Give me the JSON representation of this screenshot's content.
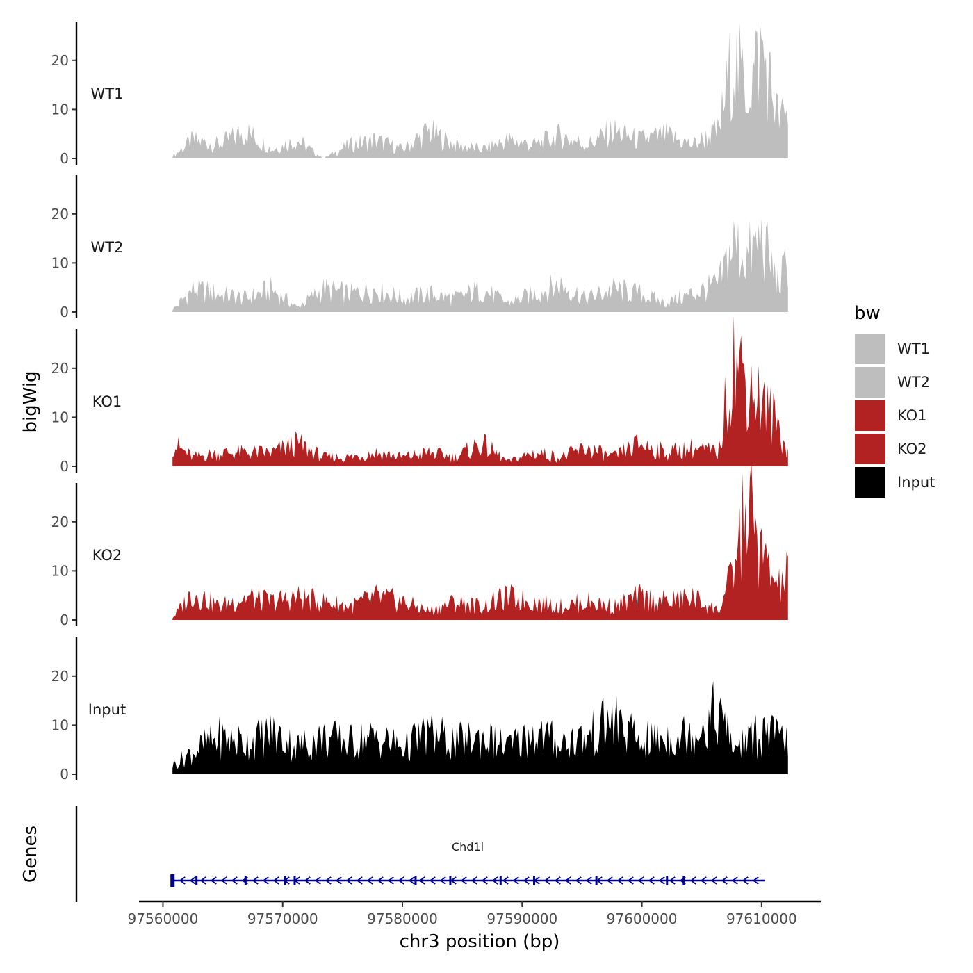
{
  "chart_data": {
    "type": "area",
    "title": "",
    "ylabel": "bigWig",
    "xlabel": "chr3 position (bp)",
    "xlim": [
      97558000,
      97615000
    ],
    "ylim": [
      0,
      27
    ],
    "yticks": [
      0,
      10,
      20
    ],
    "yticks_labels": [
      "0",
      "10",
      "20"
    ],
    "xticks": [
      97560000,
      97570000,
      97580000,
      97590000,
      97600000,
      97610000
    ],
    "xtick_labels": [
      "97560000",
      "97570000",
      "97580000",
      "97590000",
      "97600000",
      "97610000"
    ],
    "x": [
      97560800,
      97562500,
      97564700,
      97566900,
      97569100,
      97571200,
      97573400,
      97575600,
      97577800,
      97580000,
      97582200,
      97584400,
      97586600,
      97588800,
      97591000,
      97593200,
      97595400,
      97597600,
      97599800,
      97602000,
      97604200,
      97606400,
      97607600,
      97608800,
      97610000,
      97611400,
      97612200
    ],
    "series": [
      {
        "name": "WT1",
        "color": "#bebebe",
        "label": "WT1",
        "values": [
          0.5,
          4,
          3,
          6,
          2,
          4,
          0,
          3,
          4,
          2,
          6,
          3,
          2,
          4,
          3,
          5,
          3,
          6,
          4,
          5,
          3,
          6,
          22,
          15,
          24,
          9,
          9
        ]
      },
      {
        "name": "WT2",
        "color": "#bebebe",
        "label": "WT2",
        "values": [
          0.5,
          5,
          4,
          3,
          5,
          1,
          5,
          4,
          5,
          3,
          4,
          3,
          5,
          2,
          4,
          6,
          3,
          5,
          4,
          2,
          4,
          6,
          15,
          12,
          16,
          6,
          11
        ]
      },
      {
        "name": "KO1",
        "color": "#b22222",
        "label": "KO1",
        "values": [
          5,
          2,
          3,
          3,
          3,
          5,
          2,
          2,
          3,
          2,
          3,
          2,
          5,
          1,
          3,
          2,
          4,
          2,
          5,
          3,
          4,
          3,
          24,
          19,
          14,
          9,
          3
        ]
      },
      {
        "name": "KO2",
        "color": "#b22222",
        "label": "KO2",
        "values": [
          0.5,
          6,
          3,
          5,
          4,
          5,
          4,
          3,
          5,
          4,
          2,
          4,
          3,
          5,
          4,
          3,
          4,
          3,
          5,
          4,
          5,
          2,
          10,
          26,
          14,
          7,
          10
        ]
      },
      {
        "name": "Input",
        "color": "#000000",
        "label": "Input",
        "values": [
          2,
          5,
          8,
          7,
          9,
          6,
          8,
          7,
          8,
          6,
          9,
          7,
          8,
          6,
          9,
          7,
          8,
          12,
          7,
          8,
          9,
          14,
          6,
          7,
          9,
          8,
          7
        ]
      }
    ],
    "legend": {
      "title": "bw",
      "position": "right",
      "entries": [
        {
          "label": "WT1",
          "color": "#bebebe"
        },
        {
          "label": "WT2",
          "color": "#bebebe"
        },
        {
          "label": "KO1",
          "color": "#b22222"
        },
        {
          "label": "KO2",
          "color": "#b22222"
        },
        {
          "label": "Input",
          "color": "#000000"
        }
      ]
    },
    "genes_track": {
      "title": "Genes",
      "gene_name": "Chd1l",
      "start": 97560800,
      "end": 97610300,
      "strand": "-",
      "color": "#00008b"
    }
  }
}
